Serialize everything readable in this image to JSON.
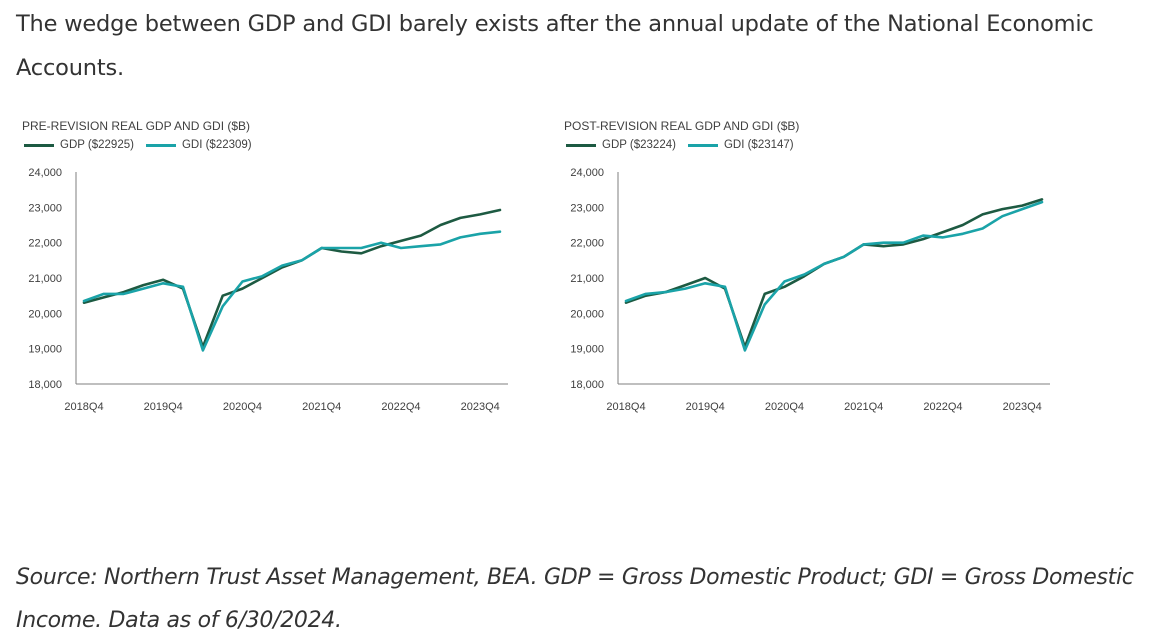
{
  "headline": "The wedge between GDP and GDI barely exists after the annual update of the National Economic Accounts.",
  "source": "Source: Northern Trust Asset Management, BEA. GDP = Gross Domestic Product; GDI = Gross Domestic Income. Data as of 6/30/2024.",
  "colors": {
    "gdp": "#1d5a42",
    "gdi": "#1aa3a8",
    "axis": "#7f7f7f"
  },
  "chart_data": [
    {
      "type": "line",
      "title": "PRE-REVISION REAL GDP AND GDI ($B)",
      "x": [
        "2018Q4",
        "2019Q1",
        "2019Q2",
        "2019Q3",
        "2019Q4",
        "2020Q1",
        "2020Q2",
        "2020Q3",
        "2020Q4",
        "2021Q1",
        "2021Q2",
        "2021Q3",
        "2021Q4",
        "2022Q1",
        "2022Q2",
        "2022Q3",
        "2022Q4",
        "2023Q1",
        "2023Q2",
        "2023Q3",
        "2023Q4",
        "2024Q1"
      ],
      "tick_labels": [
        "2018Q4",
        "2019Q4",
        "2020Q4",
        "2021Q4",
        "2022Q4",
        "2023Q4"
      ],
      "ylim": [
        18000,
        24000
      ],
      "yticks": [
        "18,000",
        "19,000",
        "20,000",
        "21,000",
        "22,000",
        "23,000",
        "24,000"
      ],
      "series": [
        {
          "name": "GDP ($22925)",
          "values": [
            20300,
            20450,
            20600,
            20800,
            20950,
            20700,
            19050,
            20500,
            20700,
            21000,
            21300,
            21500,
            21850,
            21750,
            21700,
            21900,
            22050,
            22200,
            22500,
            22700,
            22800,
            22925
          ]
        },
        {
          "name": "GDI ($22309)",
          "values": [
            20350,
            20550,
            20550,
            20700,
            20850,
            20750,
            18950,
            20200,
            20900,
            21050,
            21350,
            21500,
            21850,
            21850,
            21850,
            22000,
            21850,
            21900,
            21950,
            22150,
            22250,
            22309
          ]
        }
      ]
    },
    {
      "type": "line",
      "title": "POST-REVISION REAL GDP AND GDI ($B)",
      "x": [
        "2018Q4",
        "2019Q1",
        "2019Q2",
        "2019Q3",
        "2019Q4",
        "2020Q1",
        "2020Q2",
        "2020Q3",
        "2020Q4",
        "2021Q1",
        "2021Q2",
        "2021Q3",
        "2021Q4",
        "2022Q1",
        "2022Q2",
        "2022Q3",
        "2022Q4",
        "2023Q1",
        "2023Q2",
        "2023Q3",
        "2023Q4",
        "2024Q1"
      ],
      "tick_labels": [
        "2018Q4",
        "2019Q4",
        "2020Q4",
        "2021Q4",
        "2022Q4",
        "2023Q4"
      ],
      "ylim": [
        18000,
        24000
      ],
      "yticks": [
        "18,000",
        "19,000",
        "20,000",
        "21,000",
        "22,000",
        "23,000",
        "24,000"
      ],
      "series": [
        {
          "name": "GDP ($23224)",
          "values": [
            20300,
            20500,
            20600,
            20800,
            21000,
            20700,
            19050,
            20550,
            20750,
            21050,
            21400,
            21600,
            21950,
            21900,
            21950,
            22100,
            22300,
            22500,
            22800,
            22950,
            23050,
            23224
          ]
        },
        {
          "name": "GDI ($23147)",
          "values": [
            20350,
            20550,
            20600,
            20700,
            20850,
            20750,
            18950,
            20250,
            20900,
            21100,
            21400,
            21600,
            21950,
            22000,
            22000,
            22200,
            22150,
            22250,
            22400,
            22750,
            22950,
            23147
          ]
        }
      ]
    }
  ]
}
